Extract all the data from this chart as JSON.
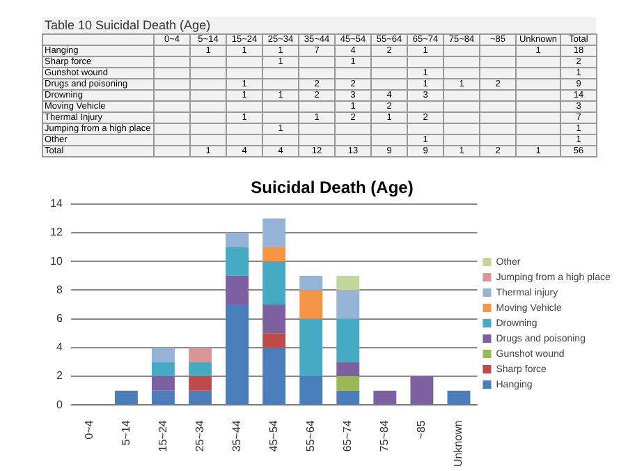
{
  "chart_data": [
    {
      "type": "heatmap",
      "title": "Table 10 Suicidal Death (Age)",
      "categories": [
        "0~4",
        "5~14",
        "15~24",
        "25~34",
        "35~44",
        "45~54",
        "55~64",
        "65~74",
        "75~84",
        "~85",
        "Unknown",
        "Total"
      ],
      "y_categories": [
        "Hanging",
        "Sharp force",
        "Gunshot wound",
        "Drugs and poisoning",
        "Drowning",
        "Moving Vehicle",
        "Thermal Injury",
        "Jumping from a high place",
        "Other",
        "Total"
      ],
      "cells": [
        [
          null,
          1,
          1,
          1,
          7,
          4,
          2,
          1,
          null,
          null,
          1,
          18
        ],
        [
          null,
          null,
          null,
          1,
          null,
          1,
          null,
          null,
          null,
          null,
          null,
          2
        ],
        [
          null,
          null,
          null,
          null,
          null,
          null,
          null,
          1,
          null,
          null,
          null,
          1
        ],
        [
          null,
          null,
          1,
          null,
          2,
          2,
          null,
          1,
          1,
          2,
          null,
          9
        ],
        [
          null,
          null,
          1,
          1,
          2,
          3,
          4,
          3,
          null,
          null,
          null,
          14
        ],
        [
          null,
          null,
          null,
          null,
          null,
          1,
          2,
          null,
          null,
          null,
          null,
          3
        ],
        [
          null,
          null,
          1,
          null,
          1,
          2,
          1,
          2,
          null,
          null,
          null,
          7
        ],
        [
          null,
          null,
          null,
          1,
          null,
          null,
          null,
          null,
          null,
          null,
          null,
          1
        ],
        [
          null,
          null,
          null,
          null,
          null,
          null,
          null,
          1,
          null,
          null,
          null,
          1
        ],
        [
          null,
          1,
          4,
          4,
          12,
          13,
          9,
          9,
          1,
          2,
          1,
          56
        ]
      ],
      "data_labels": true
    },
    {
      "type": "bar",
      "title": "Suicidal Death (Age)",
      "stacked": true,
      "categories": [
        "0~4",
        "5~14",
        "15~24",
        "25~34",
        "35~44",
        "45~54",
        "55~64",
        "65~74",
        "75~84",
        "~85",
        "Unknown"
      ],
      "series": [
        {
          "name": "Hanging",
          "color": "#4a7ebb",
          "values": [
            null,
            1,
            1,
            1,
            7,
            4,
            2,
            1,
            null,
            null,
            1
          ]
        },
        {
          "name": "Sharp force",
          "color": "#be4b48",
          "values": [
            null,
            null,
            null,
            1,
            null,
            1,
            null,
            null,
            null,
            null,
            null
          ]
        },
        {
          "name": "Gunshot wound",
          "color": "#98b954",
          "values": [
            null,
            null,
            null,
            null,
            null,
            null,
            null,
            1,
            null,
            null,
            null
          ]
        },
        {
          "name": "Drugs and poisoning",
          "color": "#7d60a0",
          "values": [
            null,
            null,
            1,
            null,
            2,
            2,
            null,
            1,
            1,
            2,
            null
          ]
        },
        {
          "name": "Drowning",
          "color": "#46aac5",
          "values": [
            null,
            null,
            1,
            1,
            2,
            3,
            4,
            3,
            null,
            null,
            null
          ]
        },
        {
          "name": "Moving Vehicle",
          "color": "#f69546",
          "values": [
            null,
            null,
            null,
            null,
            null,
            1,
            2,
            null,
            null,
            null,
            null
          ]
        },
        {
          "name": "Thermal injury",
          "color": "#95b3d7",
          "values": [
            null,
            null,
            1,
            null,
            1,
            2,
            1,
            2,
            null,
            null,
            null
          ]
        },
        {
          "name": "Jumping from a high place",
          "color": "#d99694",
          "values": [
            null,
            null,
            null,
            1,
            null,
            null,
            null,
            null,
            null,
            null,
            null
          ]
        },
        {
          "name": "Other",
          "color": "#c3d69b",
          "values": [
            null,
            null,
            null,
            null,
            null,
            null,
            null,
            1,
            null,
            null,
            null
          ]
        }
      ],
      "ylim": [
        0,
        14
      ],
      "yticks": [
        0,
        2,
        4,
        6,
        8,
        10,
        12,
        14
      ],
      "grid": "y",
      "legend": "right"
    }
  ]
}
